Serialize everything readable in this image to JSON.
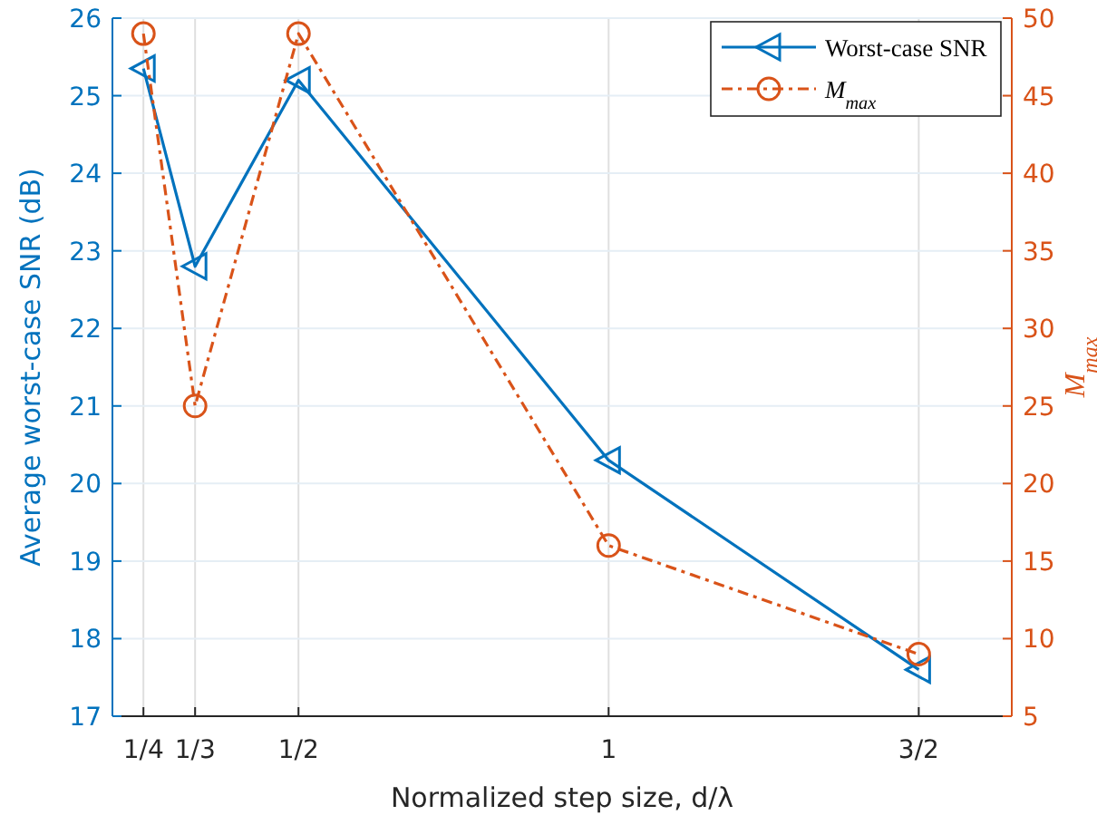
{
  "chart_data": {
    "type": "line",
    "x": [
      0.25,
      0.3333,
      0.5,
      1,
      1.5
    ],
    "xlim": [
      0.2,
      1.65
    ],
    "xticks": [
      {
        "value": 0.25,
        "label": "1/4"
      },
      {
        "value": 0.3333,
        "label": "1/3"
      },
      {
        "value": 0.5,
        "label": "1/2"
      },
      {
        "value": 1,
        "label": "1"
      },
      {
        "value": 1.5,
        "label": "3/2"
      }
    ],
    "ylim": [
      17,
      26
    ],
    "yticks": [
      17,
      18,
      19,
      20,
      21,
      22,
      23,
      24,
      25,
      26
    ],
    "y2lim": [
      5,
      50
    ],
    "y2ticks": [
      5,
      10,
      15,
      20,
      25,
      30,
      35,
      40,
      45,
      50
    ],
    "xlabel": "Normalized step size, d/λ",
    "ylabel": "Average worst-case SNR (dB)",
    "y2label": "M$_{max}$",
    "grid": true,
    "legend": "top right",
    "series": [
      {
        "name": "Worst-case SNR",
        "color": "#0072bd",
        "marker": "triangle",
        "line_style": "solid",
        "values": [
          25.35,
          22.8,
          25.2,
          20.3,
          17.6
        ]
      },
      {
        "name": "M$_{max}$",
        "color": "#d95319",
        "marker": "circle",
        "line_style": "dashdot",
        "axis": "y2",
        "values": [
          49,
          25,
          49,
          16,
          9
        ]
      }
    ]
  }
}
